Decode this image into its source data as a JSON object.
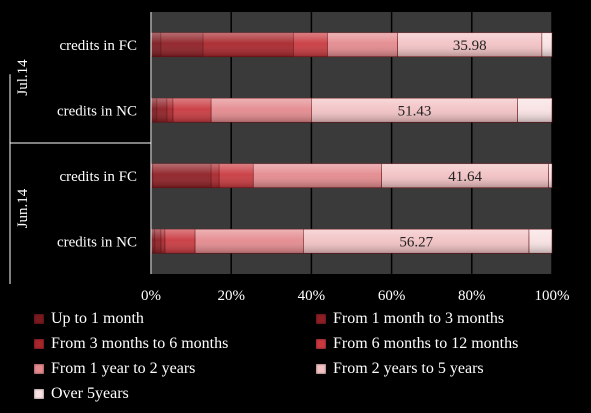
{
  "chart_data": {
    "type": "bar",
    "orientation": "horizontal",
    "stacked": "percent",
    "groups": [
      "Jul.14",
      "Jun.14"
    ],
    "rows": [
      {
        "group": "Jul.14",
        "label": "credits in FC"
      },
      {
        "group": "Jul.14",
        "label": "credits in NC"
      },
      {
        "group": "Jun.14",
        "label": "credits in FC"
      },
      {
        "group": "Jun.14",
        "label": "credits in NC"
      }
    ],
    "series": [
      {
        "name": "Up to 1 month",
        "color": "#7a1a1f",
        "values": [
          2.5,
          1.5,
          0.5,
          1.0
        ]
      },
      {
        "name": "From 1 month to 3 months",
        "color": "#8e1f25",
        "values": [
          10.5,
          2.5,
          14.5,
          1.5
        ]
      },
      {
        "name": "From 3 months to 6 months",
        "color": "#a8262c",
        "values": [
          22.5,
          1.5,
          2.0,
          1.0
        ]
      },
      {
        "name": "From 6 months to 12 months",
        "color": "#c93a40",
        "values": [
          8.5,
          9.5,
          8.5,
          7.5
        ]
      },
      {
        "name": "From 1 year to 2 years",
        "color": "#e48a8e",
        "values": [
          17.5,
          25.0,
          32.0,
          27.0
        ]
      },
      {
        "name": "From 2 years to 5 years",
        "color": "#f2c2c4",
        "values": [
          35.98,
          51.43,
          41.64,
          56.27
        ]
      },
      {
        "name": "Over 5years",
        "color": "#f8e2e3",
        "values": [
          2.52,
          8.57,
          0.86,
          5.73
        ]
      }
    ],
    "data_labels": [
      "35.98",
      "51.43",
      "41.64",
      "56.27"
    ],
    "data_label_series": "From 2 years to 5 years",
    "x_ticks": [
      "0%",
      "20%",
      "40%",
      "60%",
      "80%",
      "100%"
    ],
    "xlim": [
      0,
      100
    ],
    "plot_background": "#3a3a3a",
    "grid": true,
    "legend_position": "bottom"
  }
}
